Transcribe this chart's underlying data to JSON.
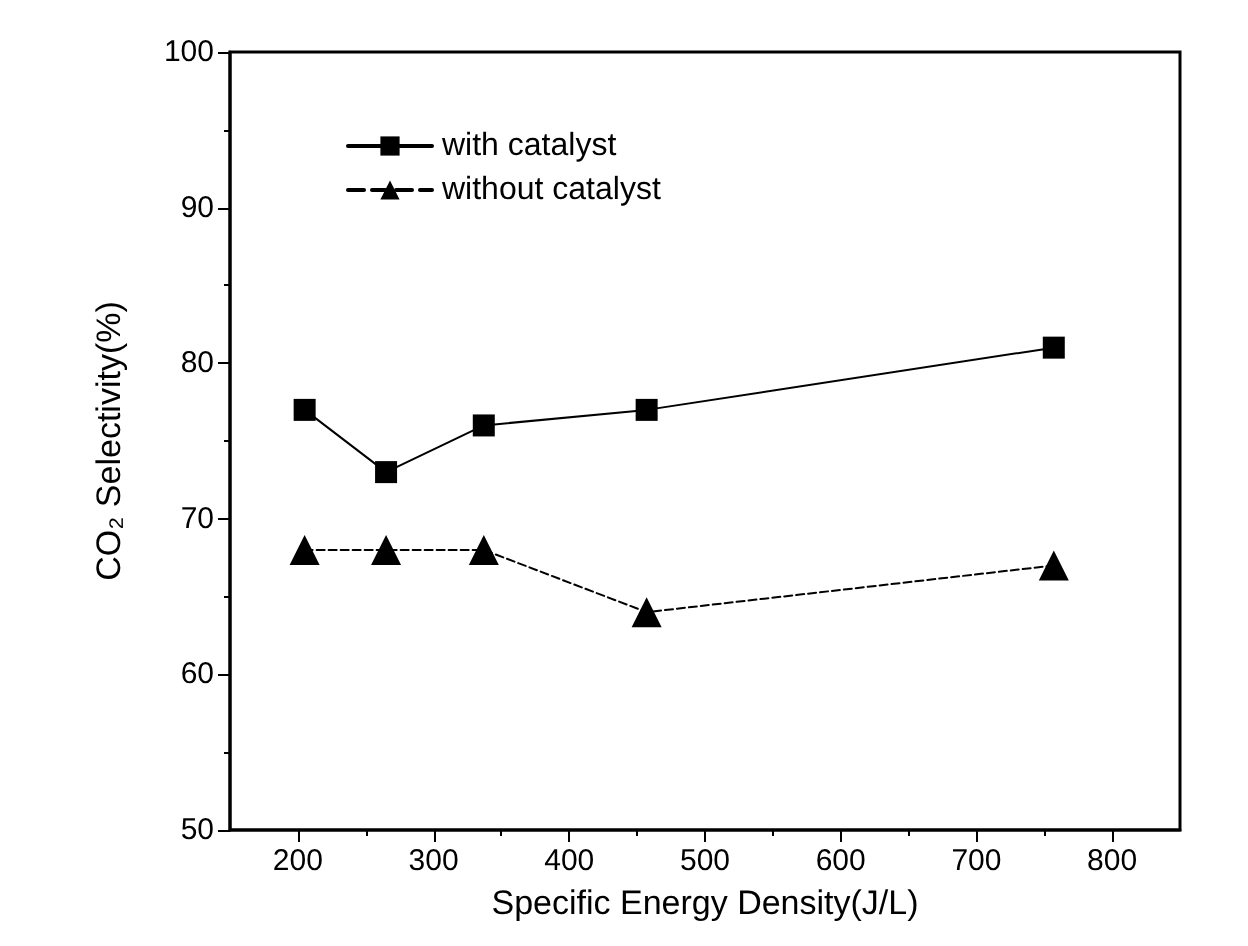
{
  "chart_data": {
    "type": "line",
    "xlabel": "Specific Energy Density(J/L)",
    "ylabel": "CO₂ Selectivity(%)",
    "x": [
      205,
      265,
      337,
      457,
      757
    ],
    "series": [
      {
        "name": "with catalyst",
        "color": "#000000",
        "values": [
          77,
          73,
          76,
          77,
          81
        ],
        "marker": "square",
        "line_style": "solid"
      },
      {
        "name": "without catalyst",
        "color": "#000000",
        "values": [
          68,
          68,
          68,
          64,
          67
        ],
        "marker": "triangle",
        "line_style": "dashed"
      }
    ],
    "xlim": [
      150,
      850
    ],
    "xticks": [
      200,
      300,
      400,
      500,
      600,
      700,
      800
    ],
    "ylim": [
      50,
      100
    ],
    "yticks": [
      50,
      60,
      70,
      80,
      90,
      100
    ],
    "grid": false,
    "legend": "top left"
  }
}
